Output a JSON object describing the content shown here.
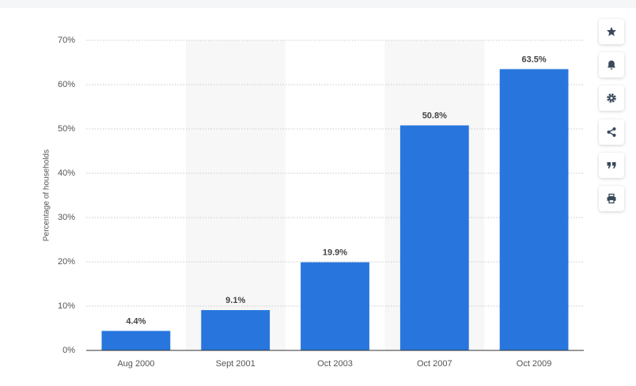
{
  "chart_data": {
    "type": "bar",
    "y_label": "Percentage of households",
    "categories": [
      "Aug 2000",
      "Sept 2001",
      "Oct 2003",
      "Oct 2007",
      "Oct 2009"
    ],
    "values": [
      4.4,
      9.1,
      19.9,
      50.8,
      63.5
    ],
    "value_labels": [
      "4.4%",
      "9.1%",
      "19.9%",
      "50.8%",
      "63.5%"
    ],
    "color": "#2876dd",
    "ylim": [
      0,
      70
    ],
    "yticks": [
      {
        "value": 0,
        "label": "0%"
      },
      {
        "value": 10,
        "label": "10%"
      },
      {
        "value": 20,
        "label": "20%"
      },
      {
        "value": 30,
        "label": "30%"
      },
      {
        "value": 40,
        "label": "40%"
      },
      {
        "value": 50,
        "label": "50%"
      },
      {
        "value": 60,
        "label": "60%"
      },
      {
        "value": 70,
        "label": "70%"
      }
    ],
    "grid": true
  }
}
